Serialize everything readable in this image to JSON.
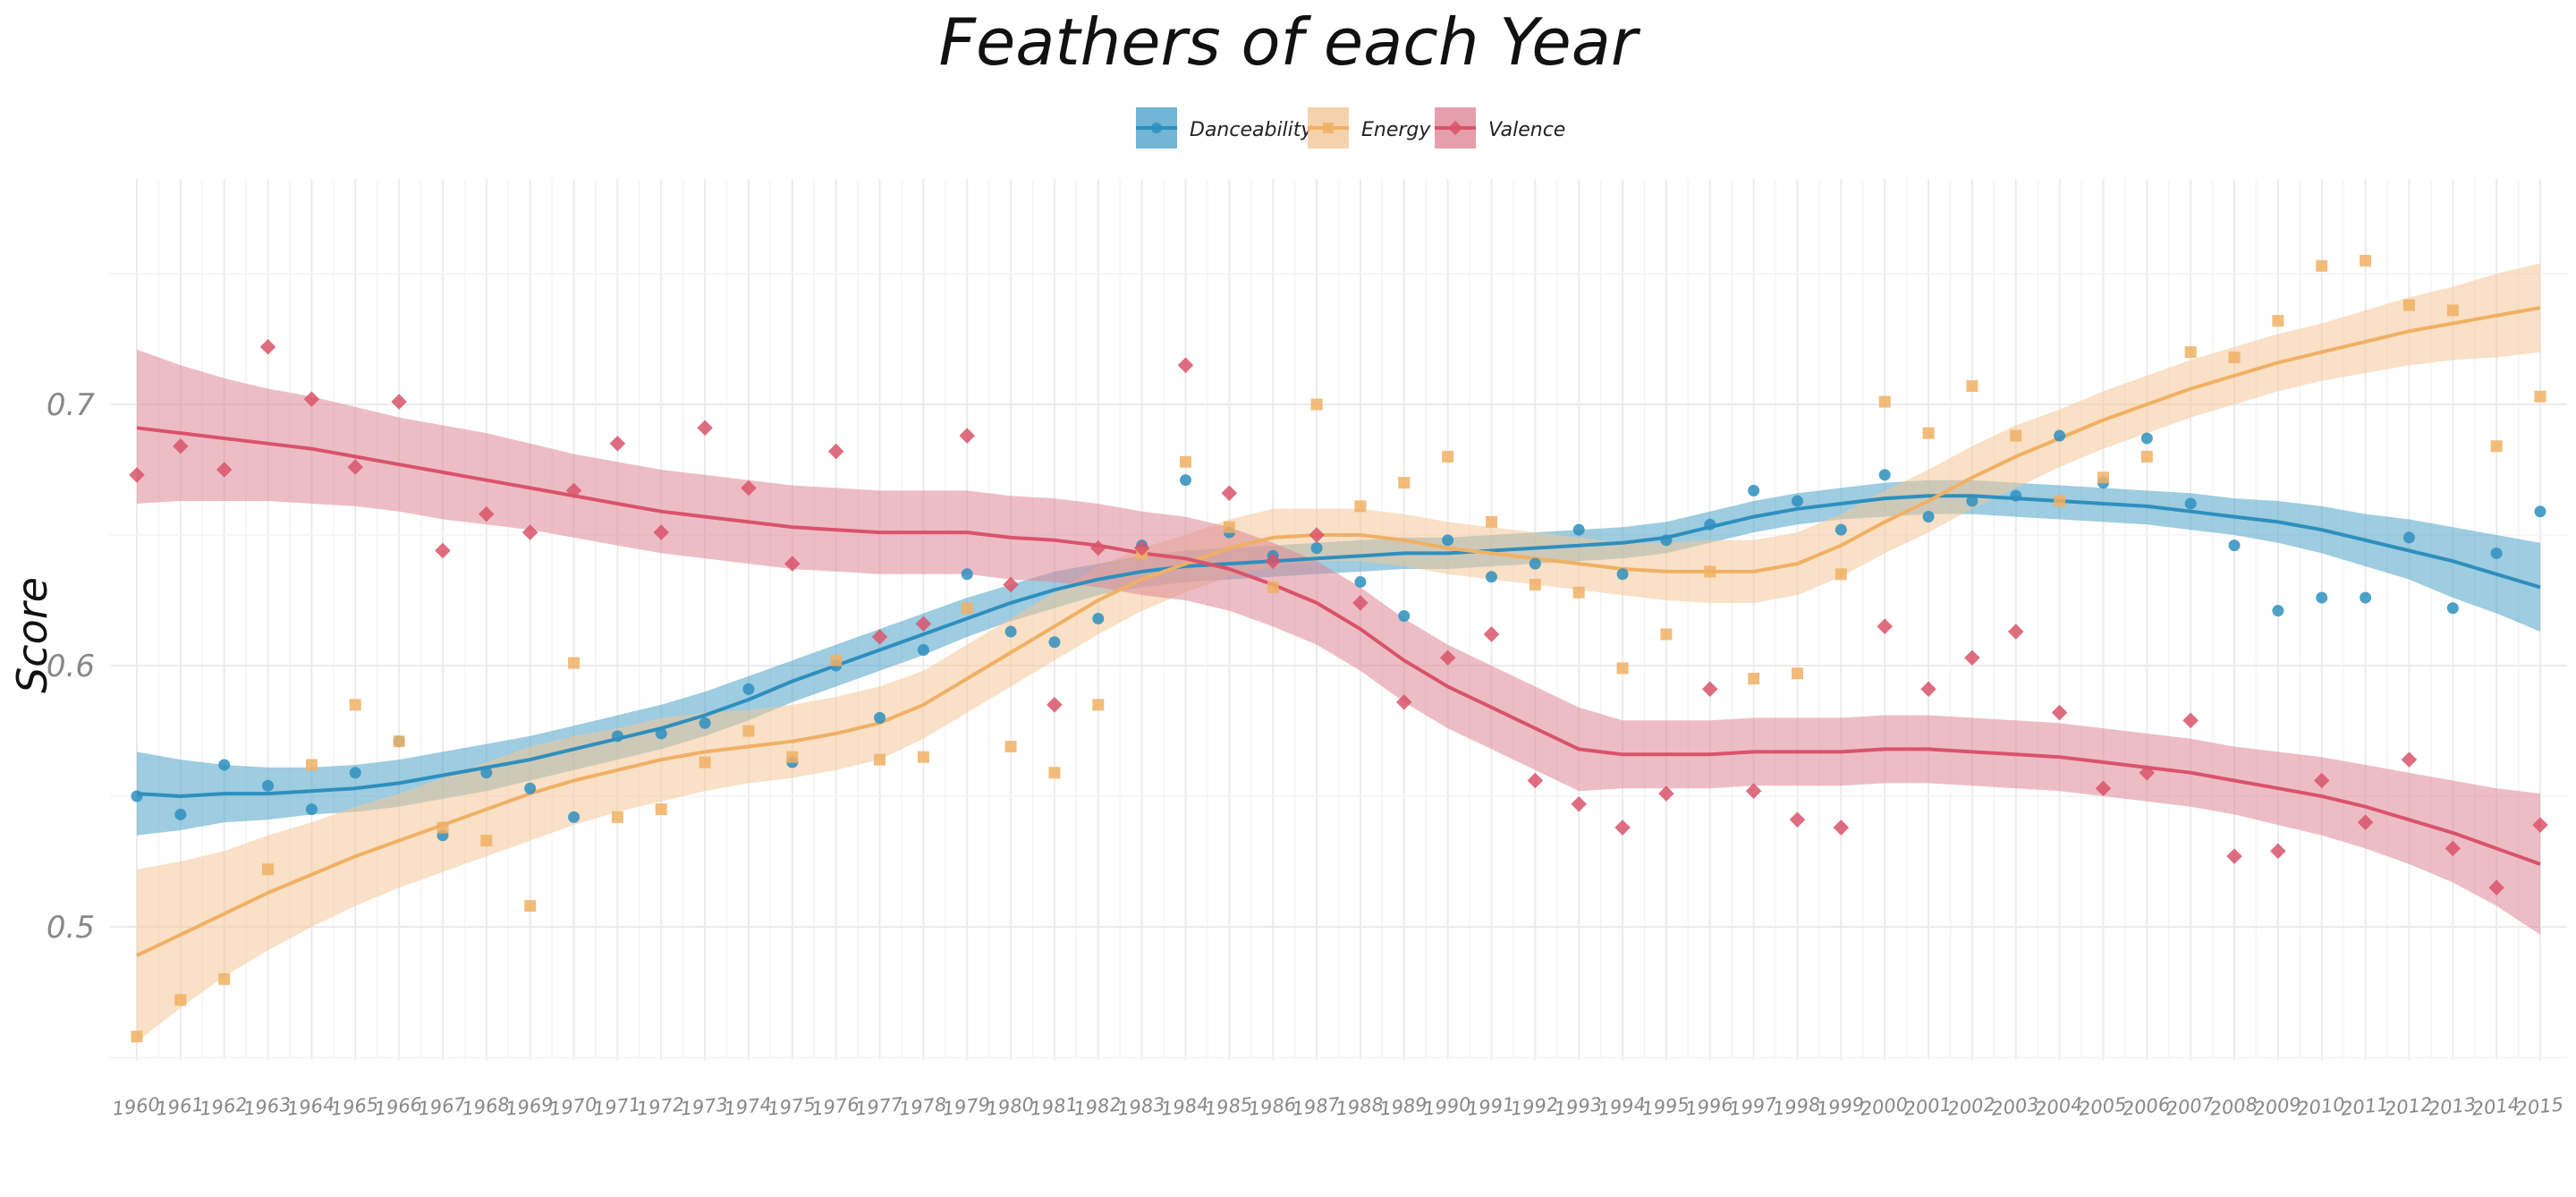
{
  "chart_data": {
    "type": "scatter",
    "title": "Feathers of each Year",
    "xlabel": "",
    "ylabel": "Score",
    "ylim": [
      0.45,
      0.76
    ],
    "yticks": [
      0.5,
      0.6,
      0.7
    ],
    "ytick_labels": [
      "0.5",
      "0.6",
      "0.7"
    ],
    "grid": true,
    "legend_position": "top",
    "x": [
      1960,
      1961,
      1962,
      1963,
      1964,
      1965,
      1966,
      1967,
      1968,
      1969,
      1970,
      1971,
      1972,
      1973,
      1974,
      1975,
      1976,
      1977,
      1978,
      1979,
      1980,
      1981,
      1982,
      1983,
      1984,
      1985,
      1986,
      1987,
      1988,
      1989,
      1990,
      1991,
      1992,
      1993,
      1994,
      1995,
      1996,
      1997,
      1998,
      1999,
      2000,
      2001,
      2002,
      2003,
      2004,
      2005,
      2006,
      2007,
      2008,
      2009,
      2010,
      2011,
      2012,
      2013,
      2014,
      2015
    ],
    "series": [
      {
        "name": "Danceability",
        "color": "#2E8FBE",
        "band_color": "#4FA3C9",
        "marker": "circle",
        "points": [
          0.55,
          0.543,
          0.562,
          0.554,
          0.545,
          0.559,
          0.571,
          0.535,
          0.559,
          0.553,
          0.542,
          0.573,
          0.574,
          0.578,
          0.591,
          0.563,
          0.6,
          0.58,
          0.606,
          0.635,
          0.613,
          0.609,
          0.618,
          0.646,
          0.671,
          0.651,
          0.642,
          0.645,
          0.632,
          0.619,
          0.648,
          0.634,
          0.639,
          0.652,
          0.635,
          0.648,
          0.654,
          0.667,
          0.663,
          0.652,
          0.673,
          0.657,
          0.663,
          0.665,
          0.688,
          0.67,
          0.687,
          0.662,
          0.646,
          0.621,
          0.626,
          0.626,
          0.649,
          0.622,
          0.643,
          0.659
        ],
        "smooth": [
          0.551,
          0.55,
          0.551,
          0.551,
          0.552,
          0.553,
          0.555,
          0.558,
          0.561,
          0.564,
          0.568,
          0.572,
          0.576,
          0.581,
          0.587,
          0.594,
          0.6,
          0.606,
          0.612,
          0.618,
          0.624,
          0.629,
          0.633,
          0.636,
          0.638,
          0.639,
          0.64,
          0.641,
          0.642,
          0.643,
          0.643,
          0.644,
          0.645,
          0.646,
          0.647,
          0.649,
          0.653,
          0.657,
          0.66,
          0.662,
          0.664,
          0.665,
          0.665,
          0.664,
          0.663,
          0.662,
          0.661,
          0.659,
          0.657,
          0.655,
          0.652,
          0.648,
          0.644,
          0.64,
          0.635,
          0.63
        ],
        "lower": [
          0.535,
          0.537,
          0.54,
          0.541,
          0.543,
          0.544,
          0.546,
          0.549,
          0.552,
          0.556,
          0.56,
          0.564,
          0.568,
          0.573,
          0.579,
          0.586,
          0.592,
          0.598,
          0.604,
          0.611,
          0.617,
          0.622,
          0.627,
          0.63,
          0.632,
          0.633,
          0.634,
          0.635,
          0.636,
          0.637,
          0.637,
          0.638,
          0.639,
          0.64,
          0.641,
          0.643,
          0.647,
          0.651,
          0.654,
          0.656,
          0.657,
          0.658,
          0.658,
          0.657,
          0.656,
          0.655,
          0.654,
          0.652,
          0.65,
          0.647,
          0.643,
          0.638,
          0.633,
          0.626,
          0.62,
          0.613
        ],
        "upper": [
          0.567,
          0.564,
          0.562,
          0.561,
          0.561,
          0.562,
          0.564,
          0.567,
          0.57,
          0.573,
          0.577,
          0.581,
          0.585,
          0.59,
          0.596,
          0.602,
          0.608,
          0.614,
          0.62,
          0.626,
          0.631,
          0.636,
          0.639,
          0.642,
          0.644,
          0.645,
          0.646,
          0.647,
          0.648,
          0.649,
          0.649,
          0.65,
          0.651,
          0.652,
          0.653,
          0.655,
          0.659,
          0.663,
          0.666,
          0.668,
          0.67,
          0.671,
          0.671,
          0.67,
          0.669,
          0.668,
          0.667,
          0.666,
          0.664,
          0.663,
          0.661,
          0.658,
          0.656,
          0.653,
          0.65,
          0.647
        ]
      },
      {
        "name": "Energy",
        "color": "#F0B064",
        "band_color": "#F4C797",
        "marker": "square",
        "points": [
          0.458,
          0.472,
          0.48,
          0.522,
          0.562,
          0.585,
          0.571,
          0.538,
          0.533,
          0.508,
          0.601,
          0.542,
          0.545,
          0.563,
          0.575,
          0.565,
          0.602,
          0.564,
          0.565,
          0.622,
          0.569,
          0.559,
          0.585,
          0.643,
          0.678,
          0.653,
          0.63,
          0.7,
          0.661,
          0.67,
          0.68,
          0.655,
          0.631,
          0.628,
          0.599,
          0.612,
          0.636,
          0.595,
          0.597,
          0.635,
          0.701,
          0.689,
          0.707,
          0.688,
          0.663,
          0.672,
          0.68,
          0.72,
          0.718,
          0.732,
          0.753,
          0.755,
          0.738,
          0.736,
          0.684,
          0.703
        ],
        "smooth": [
          0.489,
          0.497,
          0.505,
          0.513,
          0.52,
          0.527,
          0.533,
          0.539,
          0.545,
          0.551,
          0.556,
          0.56,
          0.564,
          0.567,
          0.569,
          0.571,
          0.574,
          0.578,
          0.585,
          0.595,
          0.605,
          0.615,
          0.625,
          0.633,
          0.639,
          0.645,
          0.649,
          0.65,
          0.65,
          0.648,
          0.645,
          0.643,
          0.641,
          0.639,
          0.637,
          0.636,
          0.636,
          0.636,
          0.639,
          0.646,
          0.655,
          0.663,
          0.672,
          0.68,
          0.687,
          0.694,
          0.7,
          0.706,
          0.711,
          0.716,
          0.72,
          0.724,
          0.728,
          0.731,
          0.734,
          0.737
        ],
        "lower": [
          0.456,
          0.469,
          0.481,
          0.491,
          0.5,
          0.508,
          0.515,
          0.521,
          0.527,
          0.533,
          0.539,
          0.544,
          0.548,
          0.552,
          0.555,
          0.557,
          0.56,
          0.564,
          0.572,
          0.582,
          0.592,
          0.602,
          0.612,
          0.621,
          0.628,
          0.634,
          0.638,
          0.64,
          0.64,
          0.638,
          0.635,
          0.633,
          0.631,
          0.629,
          0.627,
          0.625,
          0.624,
          0.624,
          0.627,
          0.634,
          0.643,
          0.651,
          0.66,
          0.668,
          0.676,
          0.683,
          0.689,
          0.695,
          0.7,
          0.705,
          0.709,
          0.712,
          0.715,
          0.717,
          0.718,
          0.72
        ],
        "upper": [
          0.522,
          0.525,
          0.529,
          0.535,
          0.54,
          0.546,
          0.551,
          0.557,
          0.563,
          0.569,
          0.573,
          0.576,
          0.58,
          0.582,
          0.583,
          0.585,
          0.588,
          0.592,
          0.598,
          0.608,
          0.618,
          0.628,
          0.638,
          0.645,
          0.65,
          0.656,
          0.66,
          0.66,
          0.66,
          0.658,
          0.655,
          0.653,
          0.651,
          0.649,
          0.647,
          0.647,
          0.648,
          0.648,
          0.651,
          0.658,
          0.667,
          0.675,
          0.684,
          0.692,
          0.698,
          0.705,
          0.711,
          0.717,
          0.722,
          0.727,
          0.731,
          0.736,
          0.741,
          0.745,
          0.75,
          0.754
        ]
      },
      {
        "name": "Valence",
        "color": "#D9536A",
        "band_color": "#DE8795",
        "marker": "diamond",
        "points": [
          0.673,
          0.684,
          0.675,
          0.722,
          0.702,
          0.676,
          0.701,
          0.644,
          0.658,
          0.651,
          0.667,
          0.685,
          0.651,
          0.691,
          0.668,
          0.639,
          0.682,
          0.611,
          0.616,
          0.688,
          0.631,
          0.585,
          0.645,
          0.645,
          0.715,
          0.666,
          0.64,
          0.65,
          0.624,
          0.586,
          0.603,
          0.612,
          0.556,
          0.547,
          0.538,
          0.551,
          0.591,
          0.552,
          0.541,
          0.538,
          0.615,
          0.591,
          0.603,
          0.613,
          0.582,
          0.553,
          0.559,
          0.579,
          0.527,
          0.529,
          0.556,
          0.54,
          0.564,
          0.53,
          0.515,
          0.539
        ],
        "smooth": [
          0.691,
          0.689,
          0.687,
          0.685,
          0.683,
          0.68,
          0.677,
          0.674,
          0.671,
          0.668,
          0.665,
          0.662,
          0.659,
          0.657,
          0.655,
          0.653,
          0.652,
          0.651,
          0.651,
          0.651,
          0.649,
          0.648,
          0.646,
          0.643,
          0.641,
          0.637,
          0.631,
          0.624,
          0.614,
          0.602,
          0.592,
          0.584,
          0.576,
          0.568,
          0.566,
          0.566,
          0.566,
          0.567,
          0.567,
          0.567,
          0.568,
          0.568,
          0.567,
          0.566,
          0.565,
          0.563,
          0.561,
          0.559,
          0.556,
          0.553,
          0.55,
          0.546,
          0.541,
          0.536,
          0.53,
          0.524
        ],
        "lower": [
          0.662,
          0.663,
          0.663,
          0.663,
          0.662,
          0.661,
          0.659,
          0.656,
          0.654,
          0.652,
          0.649,
          0.646,
          0.643,
          0.641,
          0.639,
          0.637,
          0.636,
          0.635,
          0.635,
          0.635,
          0.633,
          0.632,
          0.63,
          0.627,
          0.625,
          0.621,
          0.615,
          0.608,
          0.598,
          0.586,
          0.576,
          0.568,
          0.56,
          0.552,
          0.553,
          0.553,
          0.553,
          0.554,
          0.554,
          0.554,
          0.555,
          0.555,
          0.554,
          0.553,
          0.552,
          0.55,
          0.548,
          0.546,
          0.543,
          0.539,
          0.535,
          0.53,
          0.524,
          0.517,
          0.508,
          0.497
        ],
        "upper": [
          0.721,
          0.715,
          0.71,
          0.706,
          0.703,
          0.699,
          0.695,
          0.692,
          0.689,
          0.685,
          0.681,
          0.678,
          0.675,
          0.673,
          0.671,
          0.669,
          0.668,
          0.667,
          0.667,
          0.667,
          0.665,
          0.664,
          0.662,
          0.659,
          0.657,
          0.653,
          0.647,
          0.64,
          0.63,
          0.618,
          0.608,
          0.6,
          0.592,
          0.584,
          0.579,
          0.579,
          0.579,
          0.58,
          0.58,
          0.58,
          0.581,
          0.581,
          0.58,
          0.579,
          0.578,
          0.576,
          0.574,
          0.572,
          0.569,
          0.567,
          0.565,
          0.562,
          0.559,
          0.556,
          0.553,
          0.551
        ]
      }
    ]
  }
}
